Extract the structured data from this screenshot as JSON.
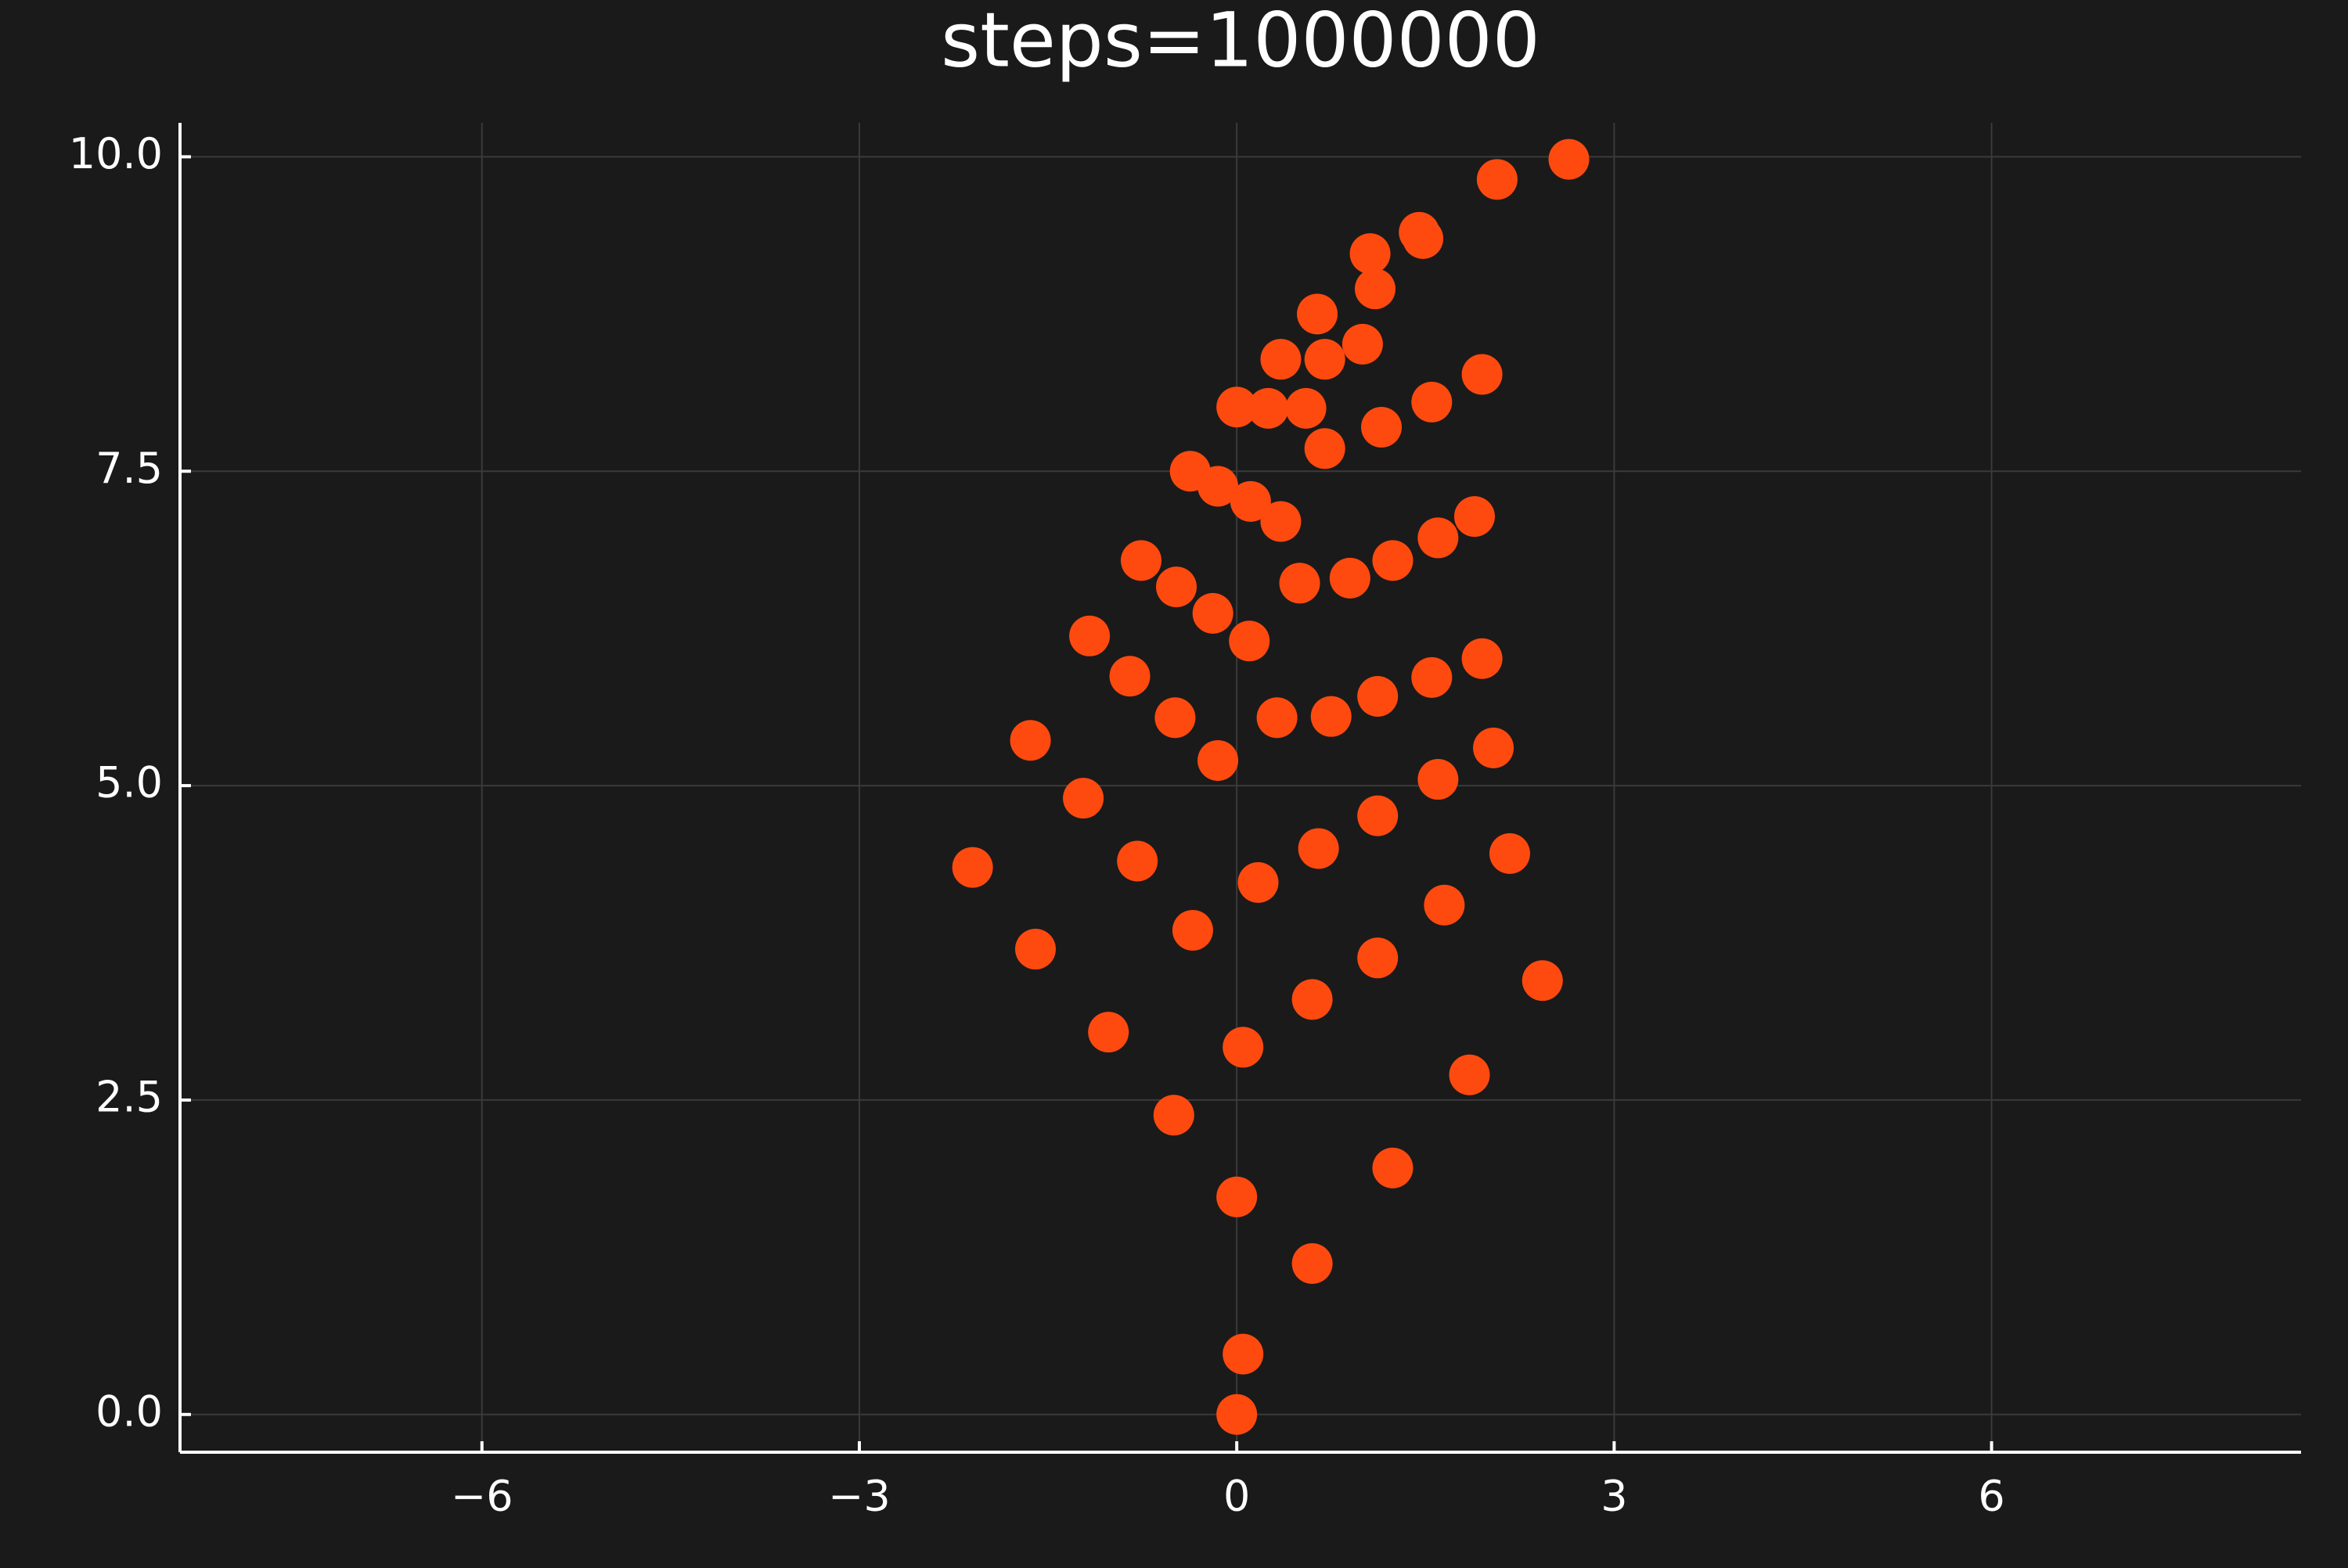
{
  "chart_data": {
    "type": "scatter",
    "title": "steps=1000000",
    "xlim": [
      -8.4,
      8.46
    ],
    "ylim": [
      -0.3,
      10.27
    ],
    "xticks": [
      {
        "value": -6,
        "label": "−6"
      },
      {
        "value": -3,
        "label": "−3"
      },
      0,
      3,
      6
    ],
    "yticks": [
      {
        "value": 0,
        "label": "0.0"
      },
      2.5,
      {
        "value": 5,
        "label": "5.0"
      },
      7.5,
      {
        "value": 10,
        "label": "10.0"
      }
    ],
    "grid": true,
    "series": [
      {
        "color": "#ff4a0f",
        "x": [
          0,
          0,
          0.05,
          0.17,
          0.32,
          0.5,
          0.7,
          1.0,
          1.48,
          2.07,
          2.64,
          0.05,
          0.6,
          1.24,
          1.85,
          2.43,
          -0.5,
          -1.02,
          -1.6,
          -2.1,
          0.6,
          1.12,
          1.65,
          2.17,
          -0.35,
          -0.79,
          -1.22,
          -1.64,
          0.65,
          1.12,
          1.6,
          2.04,
          -0.15,
          -0.49,
          -0.85,
          -1.17,
          0.75,
          1.12,
          1.55,
          1.95,
          0.1,
          -0.19,
          -0.48,
          -0.76,
          0.9,
          1.24,
          1.6,
          1.89,
          0.35,
          0.11,
          -0.15,
          -0.37,
          1.15,
          1.55,
          1.95,
          0.55,
          0.25,
          0,
          0.7,
          0.35,
          1.1,
          0.64,
          1.45,
          1.06
        ],
        "y": [
          0,
          1.73,
          2.92,
          4.23,
          5.54,
          6.61,
          7.68,
          8.51,
          9.35,
          9.82,
          9.98,
          0.48,
          1.2,
          1.96,
          2.7,
          3.45,
          2.38,
          3.04,
          3.7,
          4.35,
          3.3,
          3.63,
          4.05,
          4.46,
          3.85,
          4.4,
          4.9,
          5.36,
          4.5,
          4.76,
          5.05,
          5.3,
          5.2,
          5.54,
          5.87,
          6.19,
          5.55,
          5.71,
          5.86,
          6.01,
          6.15,
          6.37,
          6.58,
          6.79,
          6.65,
          6.79,
          6.97,
          7.14,
          7.1,
          7.26,
          7.38,
          7.5,
          7.85,
          8.05,
          8.27,
          8.0,
          8.0,
          8.01,
          8.39,
          8.39,
          8.95,
          8.75,
          9.4,
          9.23
        ]
      }
    ]
  }
}
